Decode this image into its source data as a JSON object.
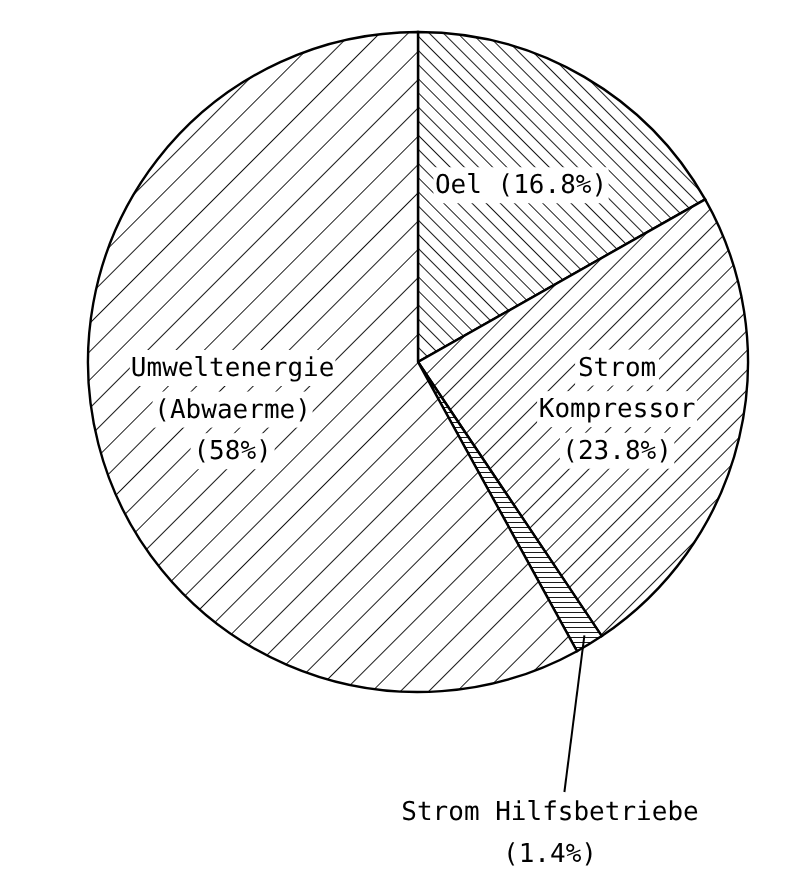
{
  "chart_data": {
    "type": "pie",
    "categories": [
      "Oel",
      "Strom Kompressor",
      "Strom Hilfsbetriebe",
      "Umweltenergie (Abwaerme)"
    ],
    "values": [
      16.8,
      23.8,
      1.4,
      58
    ],
    "value_labels": [
      "(16.8%)",
      "(23.8%)",
      "(1.4%)",
      "(58%)"
    ],
    "colors": [
      "#000000",
      "#000000",
      "#000000",
      "#000000"
    ]
  }
}
